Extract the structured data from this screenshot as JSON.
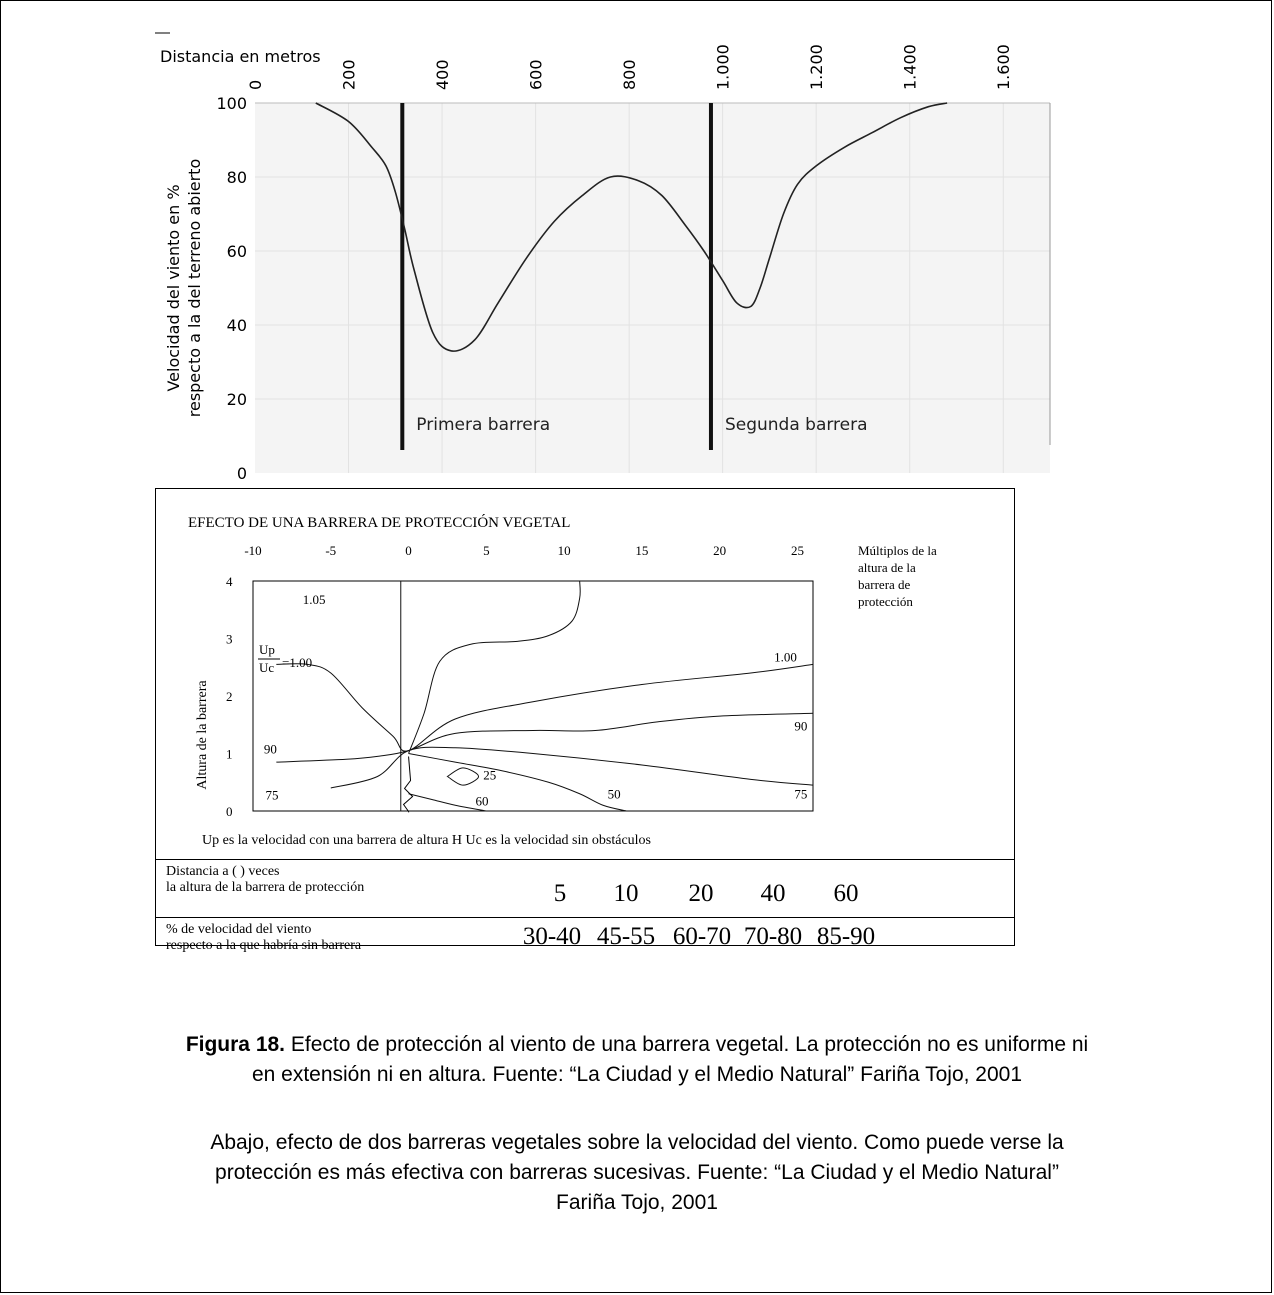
{
  "chart_data": [
    {
      "type": "line",
      "x_axis_label": "Distancia en metros",
      "x_ticks": [
        "0",
        "200",
        "400",
        "600",
        "800",
        "1.000",
        "1.200",
        "1.400",
        "1.600"
      ],
      "y_label_line1": "Velocidad del viento en %",
      "y_label_line2": "respecto a la del terreno abierto",
      "y_ticks": [
        "0",
        "20",
        "40",
        "60",
        "80",
        "100"
      ],
      "ylim": [
        0,
        100
      ],
      "xlim": [
        0,
        1700
      ],
      "series": [
        {
          "x": [
            130,
            200,
            250,
            280,
            300,
            320,
            340,
            380,
            420,
            470,
            520,
            580,
            640,
            700,
            760,
            820,
            870,
            920,
            960,
            1000,
            1030,
            1060,
            1080,
            1100,
            1130,
            1160,
            1200,
            1260,
            1320,
            1380,
            1440,
            1480
          ],
          "y": [
            100,
            95,
            88,
            83,
            76,
            66,
            55,
            38,
            33,
            36,
            46,
            58,
            68,
            75,
            80,
            79,
            75,
            67,
            60,
            52,
            46,
            45,
            50,
            58,
            70,
            78,
            83,
            88,
            92,
            96,
            99,
            100
          ]
        }
      ],
      "barriers": [
        {
          "x": 315,
          "label": "Primera barrera"
        },
        {
          "x": 975,
          "label": "Segunda barrera"
        }
      ]
    },
    {
      "type": "line",
      "title": "EFECTO DE UNA BARRERA DE PROTECCIÓN VEGETAL",
      "x_ticks": [
        "-10",
        "-5",
        "0",
        "5",
        "10",
        "15",
        "20",
        "25"
      ],
      "x_axis_note": [
        "Múltiplos de la",
        "altura de la",
        "barrera de",
        "protección"
      ],
      "y_label": "Altura de la barrera",
      "y_ticks": [
        "0",
        "1",
        "2",
        "3",
        "4"
      ],
      "xlim": [
        -10,
        26
      ],
      "ylim": [
        0,
        4
      ],
      "ratio_top": "Up",
      "ratio_bottom": "Uc",
      "ratio_value": "=1.00",
      "series": [
        {
          "name": "1.05",
          "x": [
            -0.5,
            -0.5
          ],
          "y": [
            0,
            4
          ]
        },
        {
          "name": "1.05",
          "x": [
            0,
            1,
            2,
            4,
            7,
            9,
            10.5,
            11,
            11
          ],
          "y": [
            1,
            1.7,
            2.6,
            2.9,
            2.95,
            3.05,
            3.3,
            3.7,
            4
          ]
        },
        {
          "name": "1.00",
          "x": [
            -8.5,
            -6.5,
            -5,
            -3,
            -1,
            0,
            3,
            8,
            15,
            22,
            26
          ],
          "y": [
            2.55,
            2.55,
            2.4,
            1.8,
            1.3,
            1.05,
            1.6,
            1.9,
            2.2,
            2.4,
            2.55
          ]
        },
        {
          "name": "90",
          "x": [
            -8.5,
            -4,
            -2,
            0,
            3,
            8,
            12,
            16,
            20,
            26
          ],
          "y": [
            0.85,
            0.9,
            0.95,
            1.05,
            1.35,
            1.4,
            1.4,
            1.55,
            1.65,
            1.7
          ]
        },
        {
          "name": "75",
          "x": [
            -5,
            -2,
            0,
            3,
            8,
            15,
            22,
            26
          ],
          "y": [
            0.4,
            0.6,
            1.05,
            1.1,
            1.0,
            0.8,
            0.55,
            0.45
          ]
        },
        {
          "name": "50",
          "x": [
            0,
            3,
            6,
            9,
            11,
            12.5,
            14
          ],
          "y": [
            1.0,
            0.85,
            0.7,
            0.5,
            0.3,
            0.1,
            0
          ]
        },
        {
          "name": "60",
          "x": [
            0,
            1.5,
            3,
            5
          ],
          "y": [
            0.3,
            0.2,
            0.1,
            0
          ]
        },
        {
          "name": "25",
          "x": [
            2.5,
            3.5,
            4.5,
            3.5,
            2.5
          ],
          "y": [
            0.6,
            0.75,
            0.6,
            0.45,
            0.6
          ]
        }
      ],
      "contour_labels": [
        "1.05",
        "1.00",
        "90",
        "90",
        "75",
        "75",
        "25",
        "60",
        "50"
      ],
      "footnote": "Up es la velocidad con una barrera de altura H  Uc es la velocidad sin obstáculos"
    }
  ],
  "table": {
    "row1_label_1": "Distancia a ( ) veces",
    "row1_label_2": "la altura de la barrera de protección",
    "row1_values": [
      "5",
      "10",
      "20",
      "40",
      "60"
    ],
    "row2_label_1": "% de velocidad del viento",
    "row2_label_2": "respecto a la que habría sin barrera",
    "row2_values": [
      "30-40",
      "45-55",
      "60-70",
      "70-80",
      "85-90"
    ]
  },
  "caption": {
    "bold": "Figura 18.",
    "line1": " Efecto de protección al viento de una barrera vegetal.  La protección no es uniforme ni",
    "line2": "en extensión ni en altura. Fuente: “La Ciudad y el Medio Natural” Fariña Tojo, 2001"
  },
  "paragraph": {
    "line1": "Abajo, efecto de dos barreras vegetales sobre la velocidad del viento. Como puede verse la",
    "line2": "protección es más efectiva con barreras sucesivas. Fuente: “La Ciudad y el Medio Natural”",
    "line3": "Fariña Tojo, 2001"
  }
}
